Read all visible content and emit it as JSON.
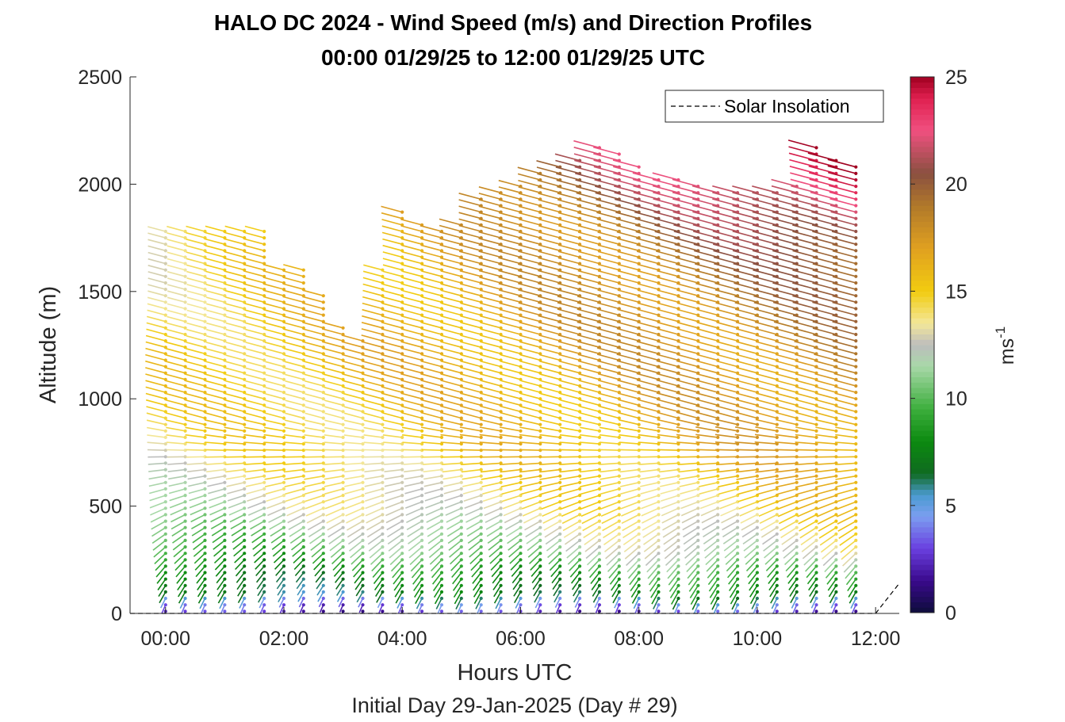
{
  "chart_data": {
    "type": "wind-barb-profile",
    "title": "HALO DC 2024 - Wind Speed (m/s) and Direction Profiles",
    "subtitle": "00:00 01/29/25 to 12:00 01/29/25  UTC",
    "xlabel": "Hours UTC",
    "xlabel2": "Initial Day 29-Jan-2025 (Day # 29)",
    "ylabel": "Altitude (m)",
    "xlim": [
      -0.6,
      12.4
    ],
    "ylim": [
      0,
      2500
    ],
    "x_ticks": [
      0,
      2,
      4,
      6,
      8,
      10,
      12
    ],
    "x_tick_labels": [
      "00:00",
      "02:00",
      "04:00",
      "06:00",
      "08:00",
      "10:00",
      "12:00"
    ],
    "y_ticks": [
      0,
      500,
      1000,
      1500,
      2000,
      2500
    ],
    "y_tick_labels": [
      "0",
      "500",
      "1000",
      "1500",
      "2000",
      "2500"
    ],
    "legend": {
      "entries": [
        "Solar Insolation"
      ],
      "placement": "top-right"
    },
    "colorbar": {
      "label": "ms",
      "label_exponent": "-1",
      "range": [
        0,
        25
      ],
      "ticks": [
        0,
        5,
        10,
        15,
        20,
        25
      ],
      "tick_labels": [
        "0",
        "5",
        "10",
        "15",
        "20",
        "25"
      ],
      "stops": [
        [
          0.0,
          "#0d0d3a"
        ],
        [
          1.5,
          "#3a0a8c"
        ],
        [
          3.0,
          "#6a3fe0"
        ],
        [
          4.5,
          "#7b9ef0"
        ],
        [
          5.5,
          "#4a9ad0"
        ],
        [
          6.5,
          "#0f6a20"
        ],
        [
          8.0,
          "#0c8a10"
        ],
        [
          9.5,
          "#3cae3c"
        ],
        [
          11.5,
          "#a8d8a8"
        ],
        [
          12.5,
          "#bdbdbd"
        ],
        [
          13.5,
          "#f3e79a"
        ],
        [
          15.0,
          "#f2cc10"
        ],
        [
          17.0,
          "#e0a020"
        ],
        [
          19.0,
          "#b0782a"
        ],
        [
          20.5,
          "#8a5040"
        ],
        [
          22.5,
          "#f05080"
        ],
        [
          24.0,
          "#e02050"
        ],
        [
          25.0,
          "#a00020"
        ]
      ]
    },
    "solar_insolation": {
      "x": [
        12.0,
        12.2,
        12.4
      ],
      "y": [
        0,
        70,
        140
      ]
    },
    "profile_times_hours": [
      0,
      0.333,
      0.667,
      1.0,
      1.333,
      1.667,
      2.0,
      2.333,
      2.667,
      3.0,
      3.333,
      3.667,
      4.0,
      4.333,
      4.667,
      5.0,
      5.333,
      5.667,
      6.0,
      6.333,
      6.667,
      7.0,
      7.333,
      7.667,
      8.0,
      8.333,
      8.667,
      9.0,
      9.333,
      9.667,
      10.0,
      10.333,
      10.667,
      11.0,
      11.333,
      11.667
    ],
    "profile_top_altitudes_m": [
      1780,
      1780,
      1780,
      1780,
      1780,
      1780,
      1620,
      1620,
      1500,
      1330,
      1290,
      1620,
      1880,
      1830,
      1800,
      1830,
      1930,
      1960,
      2010,
      2050,
      2080,
      2120,
      2180,
      2140,
      2090,
      2040,
      2020,
      2000,
      1970,
      1970,
      1970,
      1980,
      2000,
      2180,
      2130,
      2090
    ],
    "gate_spacing_m": 30,
    "speed_profile": {
      "altitude_m": [
        0,
        50,
        100,
        200,
        300,
        500,
        800,
        1200,
        1600,
        1800,
        2000,
        2200
      ],
      "early_speed_ms": [
        2,
        3,
        6,
        7,
        9,
        12,
        14,
        15,
        14,
        13,
        14,
        15
      ],
      "late_speed_ms": [
        2,
        5,
        8,
        10,
        13,
        15,
        17,
        18,
        20,
        22,
        24,
        25
      ]
    },
    "direction_deg": {
      "surface": 200,
      "aloft": 285
    }
  }
}
